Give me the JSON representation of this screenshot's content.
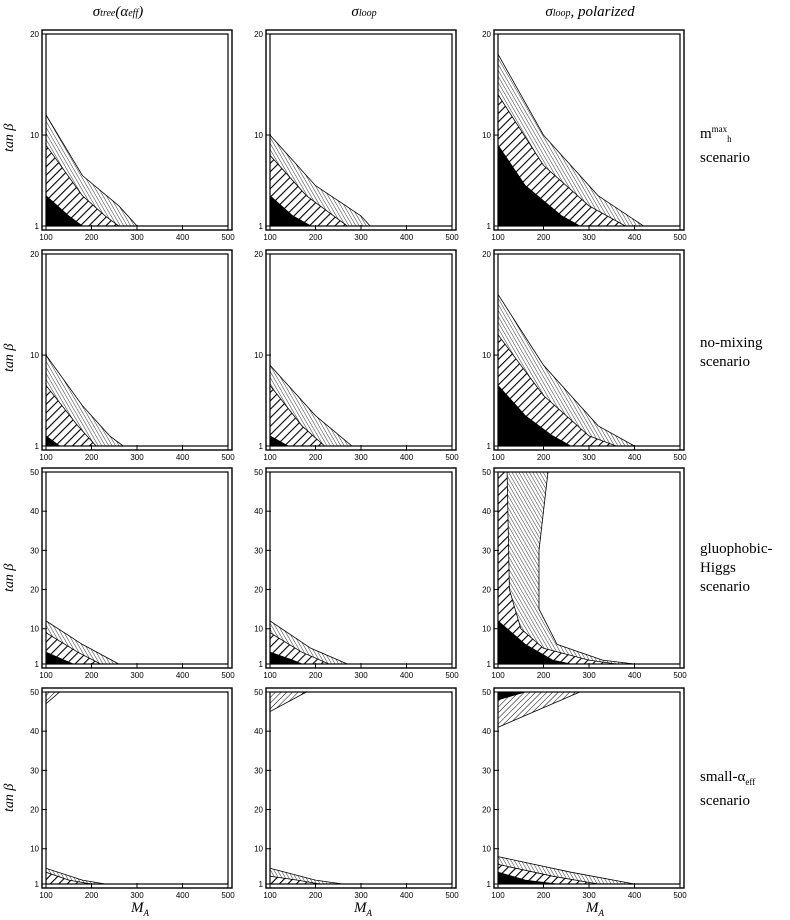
{
  "column_titles": [
    {
      "main": "σ",
      "sub": "tree",
      "rest": "(α",
      "rest_sub": "eff",
      "close": ")"
    },
    {
      "main": "σ",
      "sub": "loop",
      "rest": "",
      "rest_sub": "",
      "close": ""
    },
    {
      "main": "σ",
      "sub": "loop",
      "rest": ", polarized",
      "rest_sub": "",
      "close": ""
    }
  ],
  "row_labels": [
    [
      "m",
      "max",
      "h",
      "scenario"
    ],
    [
      "no-mixing",
      "scenario"
    ],
    [
      "gluophobic-",
      "Higgs",
      "scenario"
    ],
    [
      "small-α",
      "eff",
      "scenario"
    ]
  ],
  "y_axis_label": "tan β",
  "x_axis_label": "M",
  "x_axis_label_sub": "A",
  "colors": {
    "frame": "#000000",
    "fill_dark": "#000000",
    "background": "#ffffff"
  },
  "chart_data": [
    {
      "type": "area",
      "panel": "row1-col1",
      "x_ticks": [
        100,
        200,
        300,
        400,
        500
      ],
      "y_ticks": [
        1,
        10,
        20
      ],
      "xlim": [
        100,
        500
      ],
      "ylim": [
        1,
        20
      ],
      "series": [
        {
          "level": "black",
          "boundary": [
            [
              100,
              4
            ],
            [
              150,
              2
            ],
            [
              180,
              1
            ]
          ]
        },
        {
          "level": "hatch",
          "boundary": [
            [
              100,
              9
            ],
            [
              180,
              4
            ],
            [
              230,
              2
            ],
            [
              260,
              1
            ]
          ]
        },
        {
          "level": "outer",
          "boundary": [
            [
              100,
              12
            ],
            [
              180,
              6
            ],
            [
              260,
              3
            ],
            [
              300,
              1
            ]
          ]
        }
      ]
    },
    {
      "type": "area",
      "panel": "row1-col2",
      "x_ticks": [
        100,
        200,
        300,
        400,
        500
      ],
      "y_ticks": [
        1,
        10,
        20
      ],
      "xlim": [
        100,
        500
      ],
      "ylim": [
        1,
        20
      ],
      "series": [
        {
          "level": "black",
          "boundary": [
            [
              100,
              4
            ],
            [
              150,
              2
            ],
            [
              190,
              1
            ]
          ]
        },
        {
          "level": "hatch",
          "boundary": [
            [
              100,
              8
            ],
            [
              180,
              4
            ],
            [
              240,
              2
            ],
            [
              270,
              1
            ]
          ]
        },
        {
          "level": "outer",
          "boundary": [
            [
              100,
              10
            ],
            [
              200,
              5
            ],
            [
              300,
              2
            ],
            [
              320,
              1
            ]
          ]
        }
      ]
    },
    {
      "type": "area",
      "panel": "row1-col3",
      "x_ticks": [
        100,
        200,
        300,
        400,
        500
      ],
      "y_ticks": [
        1,
        10,
        20
      ],
      "xlim": [
        100,
        500
      ],
      "ylim": [
        1,
        20
      ],
      "series": [
        {
          "level": "black",
          "boundary": [
            [
              100,
              9
            ],
            [
              160,
              5
            ],
            [
              240,
              2
            ],
            [
              280,
              1
            ]
          ]
        },
        {
          "level": "hatch",
          "boundary": [
            [
              100,
              14
            ],
            [
              200,
              7
            ],
            [
              300,
              3
            ],
            [
              380,
              1
            ]
          ]
        },
        {
          "level": "outer",
          "boundary": [
            [
              100,
              18
            ],
            [
              200,
              10
            ],
            [
              320,
              4
            ],
            [
              420,
              1
            ]
          ]
        }
      ]
    },
    {
      "type": "area",
      "panel": "row2-col1",
      "x_ticks": [
        100,
        200,
        300,
        400,
        500
      ],
      "y_ticks": [
        1,
        10,
        20
      ],
      "xlim": [
        100,
        500
      ],
      "ylim": [
        1,
        20
      ],
      "series": [
        {
          "level": "black",
          "boundary": [
            [
              100,
              2
            ],
            [
              130,
              1
            ]
          ]
        },
        {
          "level": "hatch",
          "boundary": [
            [
              100,
              7
            ],
            [
              170,
              3
            ],
            [
              210,
              1
            ]
          ]
        },
        {
          "level": "outer",
          "boundary": [
            [
              100,
              10
            ],
            [
              180,
              5
            ],
            [
              240,
              2
            ],
            [
              270,
              1
            ]
          ]
        }
      ]
    },
    {
      "type": "area",
      "panel": "row2-col2",
      "x_ticks": [
        100,
        200,
        300,
        400,
        500
      ],
      "y_ticks": [
        1,
        10,
        20
      ],
      "xlim": [
        100,
        500
      ],
      "ylim": [
        1,
        20
      ],
      "series": [
        {
          "level": "black",
          "boundary": [
            [
              100,
              2
            ],
            [
              140,
              1
            ]
          ]
        },
        {
          "level": "hatch",
          "boundary": [
            [
              100,
              7
            ],
            [
              170,
              3
            ],
            [
              220,
              1
            ]
          ]
        },
        {
          "level": "outer",
          "boundary": [
            [
              100,
              9
            ],
            [
              200,
              4
            ],
            [
              280,
              1
            ]
          ]
        }
      ]
    },
    {
      "type": "area",
      "panel": "row2-col3",
      "x_ticks": [
        100,
        200,
        300,
        400,
        500
      ],
      "y_ticks": [
        1,
        10,
        20
      ],
      "xlim": [
        100,
        500
      ],
      "ylim": [
        1,
        20
      ],
      "series": [
        {
          "level": "black",
          "boundary": [
            [
              100,
              7
            ],
            [
              160,
              4
            ],
            [
              220,
              2
            ],
            [
              260,
              1
            ]
          ]
        },
        {
          "level": "hatch",
          "boundary": [
            [
              100,
              12
            ],
            [
              200,
              6
            ],
            [
              300,
              2
            ],
            [
              360,
              1
            ]
          ]
        },
        {
          "level": "outer",
          "boundary": [
            [
              100,
              16
            ],
            [
              200,
              9
            ],
            [
              320,
              3
            ],
            [
              400,
              1
            ]
          ]
        }
      ]
    },
    {
      "type": "area",
      "panel": "row3-col1",
      "x_ticks": [
        100,
        200,
        300,
        400,
        500
      ],
      "y_ticks": [
        1,
        10,
        20,
        30,
        40,
        50
      ],
      "xlim": [
        100,
        500
      ],
      "ylim": [
        1,
        50
      ],
      "series": [
        {
          "level": "black",
          "boundary": [
            [
              100,
              4
            ],
            [
              140,
              2
            ],
            [
              160,
              1
            ]
          ]
        },
        {
          "level": "hatch",
          "boundary": [
            [
              100,
              9
            ],
            [
              170,
              4
            ],
            [
              220,
              1
            ]
          ]
        },
        {
          "level": "outer",
          "boundary": [
            [
              100,
              12
            ],
            [
              180,
              6
            ],
            [
              260,
              1
            ]
          ]
        }
      ]
    },
    {
      "type": "area",
      "panel": "row3-col2",
      "x_ticks": [
        100,
        200,
        300,
        400,
        500
      ],
      "y_ticks": [
        1,
        10,
        20,
        30,
        40,
        50
      ],
      "xlim": [
        100,
        500
      ],
      "ylim": [
        1,
        50
      ],
      "series": [
        {
          "level": "black",
          "boundary": [
            [
              100,
              4
            ],
            [
              150,
              2
            ],
            [
              170,
              1
            ]
          ]
        },
        {
          "level": "hatch",
          "boundary": [
            [
              100,
              9
            ],
            [
              170,
              4
            ],
            [
              230,
              1
            ]
          ]
        },
        {
          "level": "outer",
          "boundary": [
            [
              100,
              12
            ],
            [
              190,
              5
            ],
            [
              270,
              1
            ]
          ]
        }
      ]
    },
    {
      "type": "area",
      "panel": "row3-col3",
      "x_ticks": [
        100,
        200,
        300,
        400,
        500
      ],
      "y_ticks": [
        1,
        10,
        20,
        30,
        40,
        50
      ],
      "xlim": [
        100,
        500
      ],
      "ylim": [
        1,
        50
      ],
      "series": [
        {
          "level": "black",
          "boundary": [
            [
              100,
              12
            ],
            [
              160,
              6
            ],
            [
              220,
              2
            ],
            [
              260,
              1
            ]
          ]
        },
        {
          "level": "hatch",
          "boundary": [
            [
              120,
              50
            ],
            [
              125,
              20
            ],
            [
              150,
              10
            ],
            [
              200,
              5
            ],
            [
              300,
              2
            ],
            [
              360,
              1
            ]
          ]
        },
        {
          "level": "outer",
          "boundary": [
            [
              210,
              50
            ],
            [
              190,
              30
            ],
            [
              190,
              15
            ],
            [
              230,
              6
            ],
            [
              330,
              2
            ],
            [
              400,
              1
            ]
          ]
        }
      ]
    },
    {
      "type": "area",
      "panel": "row4-col1",
      "x_ticks": [
        100,
        200,
        300,
        400,
        500
      ],
      "y_ticks": [
        1,
        10,
        20,
        30,
        40,
        50
      ],
      "xlim": [
        100,
        500
      ],
      "ylim": [
        1,
        50
      ],
      "series": [
        {
          "level": "hatch",
          "boundary": [
            [
              100,
              4
            ],
            [
              150,
              2
            ],
            [
              200,
              1
            ]
          ]
        },
        {
          "level": "outer",
          "boundary": [
            [
              100,
              5
            ],
            [
              180,
              2
            ],
            [
              230,
              1
            ]
          ]
        },
        {
          "level": "top-hatch",
          "boundary": [
            [
              100,
              47
            ],
            [
              130,
              50
            ]
          ]
        }
      ]
    },
    {
      "type": "area",
      "panel": "row4-col2",
      "x_ticks": [
        100,
        200,
        300,
        400,
        500
      ],
      "y_ticks": [
        1,
        10,
        20,
        30,
        40,
        50
      ],
      "xlim": [
        100,
        500
      ],
      "ylim": [
        1,
        50
      ],
      "series": [
        {
          "level": "hatch",
          "boundary": [
            [
              100,
              3
            ],
            [
              160,
              2
            ],
            [
              210,
              1
            ]
          ]
        },
        {
          "level": "outer",
          "boundary": [
            [
              100,
              5
            ],
            [
              200,
              2
            ],
            [
              260,
              1
            ]
          ]
        },
        {
          "level": "top-hatch",
          "boundary": [
            [
              100,
              45
            ],
            [
              180,
              50
            ]
          ]
        }
      ]
    },
    {
      "type": "area",
      "panel": "row4-col3",
      "x_ticks": [
        100,
        200,
        300,
        400,
        500
      ],
      "y_ticks": [
        1,
        10,
        20,
        30,
        40,
        50
      ],
      "xlim": [
        100,
        500
      ],
      "ylim": [
        1,
        50
      ],
      "series": [
        {
          "level": "black",
          "boundary": [
            [
              100,
              4
            ],
            [
              160,
              2
            ],
            [
              230,
              1
            ]
          ]
        },
        {
          "level": "hatch",
          "boundary": [
            [
              100,
              6
            ],
            [
              220,
              3
            ],
            [
              320,
              1
            ]
          ]
        },
        {
          "level": "outer",
          "boundary": [
            [
              100,
              8
            ],
            [
              260,
              4
            ],
            [
              400,
              1
            ]
          ]
        },
        {
          "level": "top-black",
          "boundary": [
            [
              100,
              48
            ],
            [
              160,
              50
            ]
          ]
        },
        {
          "level": "top-hatch",
          "boundary": [
            [
              100,
              41
            ],
            [
              280,
              50
            ]
          ]
        }
      ]
    }
  ]
}
